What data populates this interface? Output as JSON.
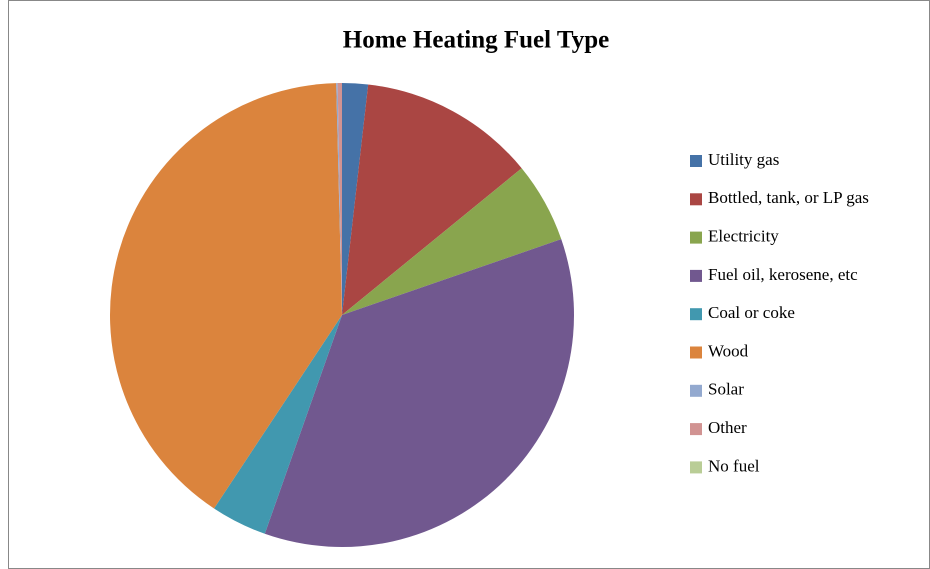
{
  "chart_data": {
    "type": "pie",
    "title": "Home Heating Fuel Type",
    "categories": [
      "Utility gas",
      "Bottled, tank,  or LP gas",
      "Electricity",
      "Fuel oil, kerosene,  etc",
      "Coal or coke",
      "Wood",
      "Solar",
      "Other",
      "No fuel"
    ],
    "values": [
      1.8,
      12.3,
      5.6,
      35.7,
      3.9,
      40.3,
      0.1,
      0.3,
      0.0
    ],
    "colors": [
      "#4572a7",
      "#aa4643",
      "#89a54e",
      "#71588f",
      "#4198af",
      "#db843d",
      "#93a9cf",
      "#d19392",
      "#b9cd96"
    ],
    "legend": "right"
  }
}
